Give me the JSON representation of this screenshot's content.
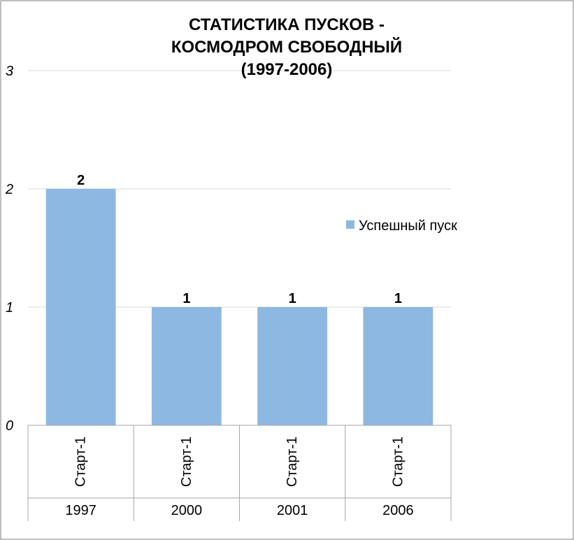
{
  "chart_data": {
    "type": "bar",
    "title_lines": [
      "СТАТИСТИКА ПУСКОВ -",
      "КОСМОДРОМ СВОБОДНЫЙ",
      "(1997-2006)"
    ],
    "categories": [
      {
        "group": "1997",
        "label": "Старт-1"
      },
      {
        "group": "2000",
        "label": "Старт-1"
      },
      {
        "group": "2001",
        "label": "Старт-1"
      },
      {
        "group": "2006",
        "label": "Старт-1"
      }
    ],
    "series": [
      {
        "name": "Успешный пуск",
        "values": [
          2,
          1,
          1,
          1
        ],
        "color": "#8DB8E1"
      }
    ],
    "ylim": [
      0,
      3
    ],
    "yticks": [
      0,
      1,
      2,
      3
    ],
    "grid": true,
    "legend": "right",
    "gridline_color": "#D9D9D9",
    "axis_color": "#A6A6A6",
    "border_color": "#7F7F7F"
  }
}
